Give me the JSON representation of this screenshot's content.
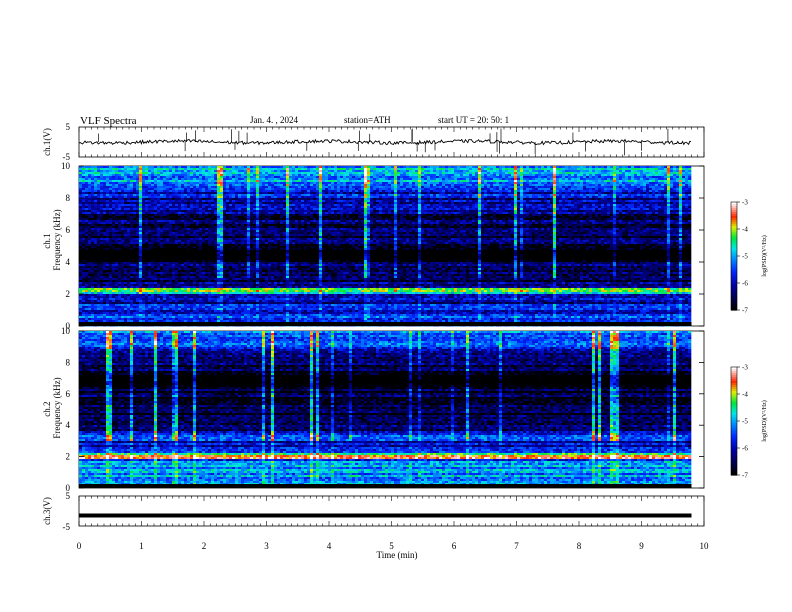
{
  "header": {
    "title": "VLF  Spectra",
    "date": "Jan.  4.  , 2024",
    "station": "station=ATH",
    "start_ut": "start  UT  =    20: 50: 1"
  },
  "colors": {
    "cmap": [
      "#000000",
      "#000033",
      "#000080",
      "#0000ff",
      "#1e90ff",
      "#00ffff",
      "#00ff00",
      "#ffff00",
      "#ff0000",
      "#ffffff"
    ]
  },
  "chart_data": [
    {
      "type": "line",
      "ylabel": "ch.1(V)",
      "yticks": [
        "5",
        "-5"
      ],
      "ylim": [
        -5,
        5
      ],
      "description_of_data": "noisy trace near 0 V with short spikes",
      "baseline": 0
    },
    {
      "type": "heatmap",
      "ylabel": "ch.1\nFrequency  (kHz)",
      "yticks": [
        "0",
        "2",
        "4",
        "6",
        "8",
        "10"
      ],
      "ylim": [
        0,
        10
      ],
      "colorbar": {
        "label": "log(PSD)(V²/Hz)",
        "ticks": [
          "-3",
          "-4",
          "-5",
          "-6",
          "-7"
        ],
        "range": [
          -7,
          -3
        ]
      },
      "bands_khz": [
        {
          "f": 2.2,
          "level": -4.0
        },
        {
          "f": 4.1,
          "level": -6.8
        },
        {
          "f": 3.6,
          "level": -6.0
        },
        {
          "f": 9.0,
          "level": -5.0
        }
      ]
    },
    {
      "type": "heatmap",
      "ylabel": "ch.2\nFrequency  (kHz)",
      "yticks": [
        "0",
        "2",
        "4",
        "6",
        "8",
        "10"
      ],
      "ylim": [
        0,
        10
      ],
      "colorbar": {
        "label": "log(PSD)(V²/Hz)",
        "ticks": [
          "-3",
          "-4",
          "-5",
          "-6",
          "-7"
        ],
        "range": [
          -7,
          -3
        ]
      },
      "bands_khz": [
        {
          "f": 2.0,
          "level": -3.5
        },
        {
          "f": 3.2,
          "level": -5.2
        },
        {
          "f": 7.0,
          "level": -7.0
        },
        {
          "f": 9.2,
          "level": -5.0
        }
      ]
    },
    {
      "type": "line",
      "ylabel": "ch.3(V)",
      "yticks": [
        "5",
        "-5"
      ],
      "ylim": [
        -5,
        5
      ],
      "baseline": -1.5
    }
  ],
  "xaxis": {
    "label": "Time  (min)",
    "ticks": [
      "0",
      "1",
      "2",
      "3",
      "4",
      "5",
      "6",
      "7",
      "8",
      "9",
      "10"
    ],
    "xlim": [
      0,
      10
    ],
    "data_end": 9.8
  }
}
